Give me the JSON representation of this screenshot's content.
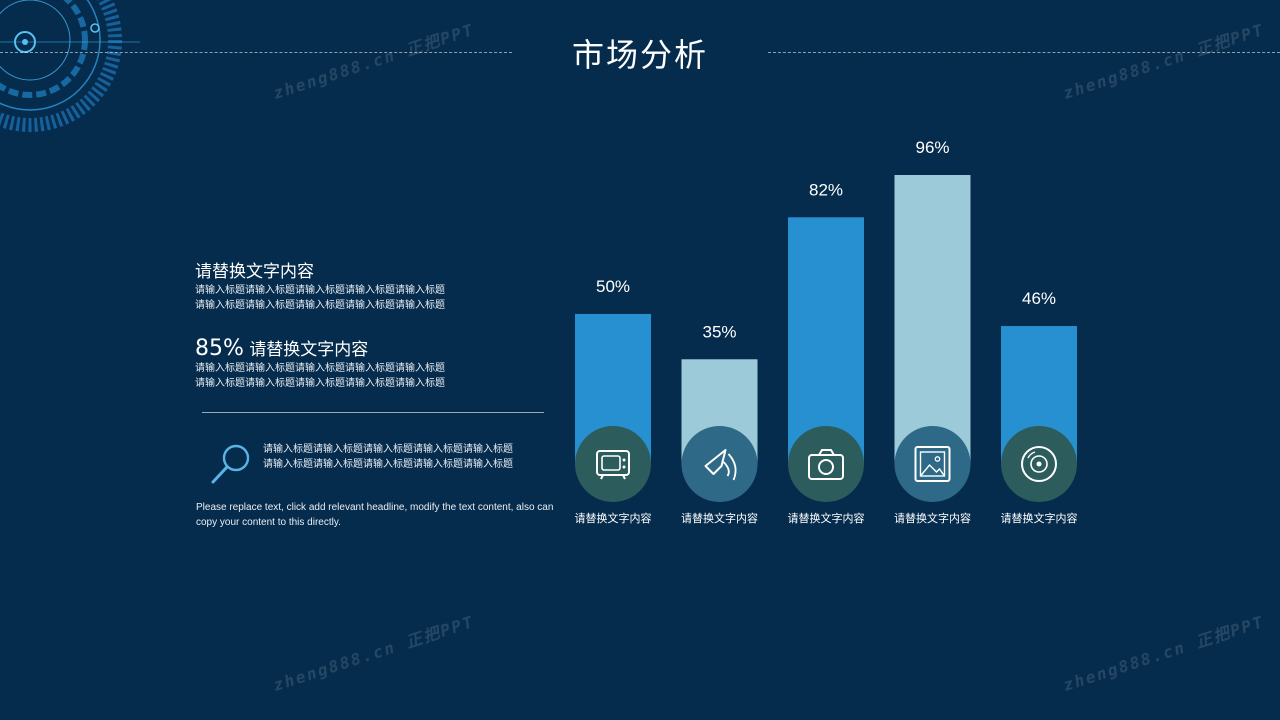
{
  "title": "市场分析",
  "watermark": "zheng888.cn 正把PPT",
  "colors": {
    "background": "#062c4d",
    "bar_dark": "#2690d0",
    "bar_light": "#9dcad9",
    "circle_dark": "#2d5c5c",
    "circle_light": "#2e6a87"
  },
  "left_panel": {
    "block1": {
      "title": "请替换文字内容",
      "lines": [
        "请输入标题请输入标题请输入标题请输入标题请输入标题",
        "请输入标题请输入标题请输入标题请输入标题请输入标题"
      ]
    },
    "block2": {
      "percent": "85%",
      "title": "请替换文字内容",
      "lines": [
        "请输入标题请输入标题请输入标题请输入标题请输入标题",
        "请输入标题请输入标题请输入标题请输入标题请输入标题"
      ]
    },
    "search_block": {
      "icon": "magnifier-icon",
      "lines": [
        "请输入标题请输入标题请输入标题请输入标题请输入标题",
        "请输入标题请输入标题请输入标题请输入标题请输入标题"
      ]
    },
    "english_text": "Please replace text, click add relevant headline, modify the text content, also can copy your content to this directly."
  },
  "chart_data": {
    "type": "bar",
    "categories": [
      "请替换文字内容",
      "请替换文字内容",
      "请替换文字内容",
      "请替换文字内容",
      "请替换文字内容"
    ],
    "values": [
      50,
      35,
      82,
      96,
      46
    ],
    "value_labels": [
      "50%",
      "35%",
      "82%",
      "96%",
      "46%"
    ],
    "unit": "%",
    "ylim": [
      0,
      100
    ],
    "icons": [
      "tv-icon",
      "speaker-icon",
      "camera-icon",
      "picture-icon",
      "disc-icon"
    ],
    "bar_colors": [
      "#2690d0",
      "#9dcad9",
      "#2690d0",
      "#9dcad9",
      "#2690d0"
    ],
    "grid": false,
    "legend": "none"
  }
}
